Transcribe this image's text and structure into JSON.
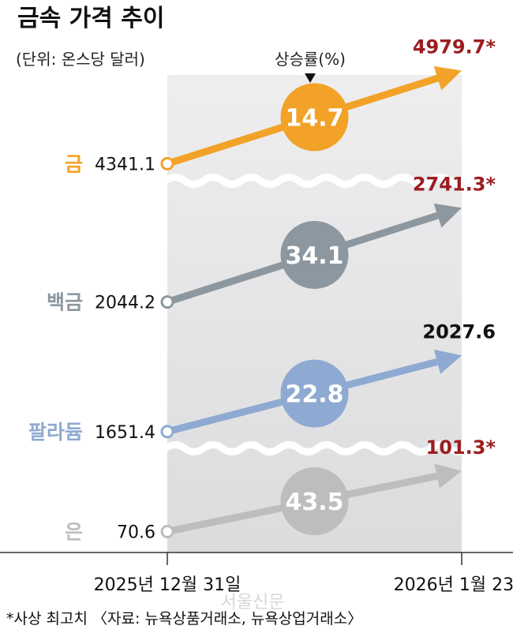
{
  "title": "금속 가격 추이",
  "unit_label": "(단위: 온스당 달러)",
  "rate_label": "상승률(%)",
  "footnote": "*사상 최고치 〈자료: 뉴욕상품거래소, 뉴욕상업거래소〉",
  "watermark": "서울신문",
  "colors": {
    "gold": "#f2a227",
    "platinum": "#8c979f",
    "palladium": "#8eaad2",
    "silver": "#bdbdbd",
    "record_high": "#9b1d20",
    "band": "#e7e7e9"
  },
  "chart_data": {
    "type": "line",
    "title": "금속 가격 추이",
    "unit": "(단위: 온스당 달러)",
    "x": [
      "2025년 12월 31일",
      "2026년 1월 23일"
    ],
    "series": [
      {
        "name": "금",
        "key": "gold",
        "start_label": "4341.1",
        "end_label": "4979.7*",
        "rate_label": "14.7",
        "values": [
          4341.1,
          4979.7
        ],
        "rate": 14.7,
        "record_high": true
      },
      {
        "name": "백금",
        "key": "platinum",
        "start_label": "2044.2",
        "end_label": "2741.3*",
        "rate_label": "34.1",
        "values": [
          2044.2,
          2741.3
        ],
        "rate": 34.1,
        "record_high": true
      },
      {
        "name": "팔라듐",
        "key": "palladium",
        "start_label": "1651.4",
        "end_label": "2027.6",
        "rate_label": "22.8",
        "values": [
          1651.4,
          2027.6
        ],
        "rate": 22.8,
        "record_high": false
      },
      {
        "name": "은",
        "key": "silver",
        "start_label": "70.6",
        "end_label": "101.3*",
        "rate_label": "43.5",
        "values": [
          70.6,
          101.3
        ],
        "rate": 43.5,
        "record_high": true
      }
    ],
    "axis_breaks": true,
    "grid": false,
    "legend": "none"
  }
}
